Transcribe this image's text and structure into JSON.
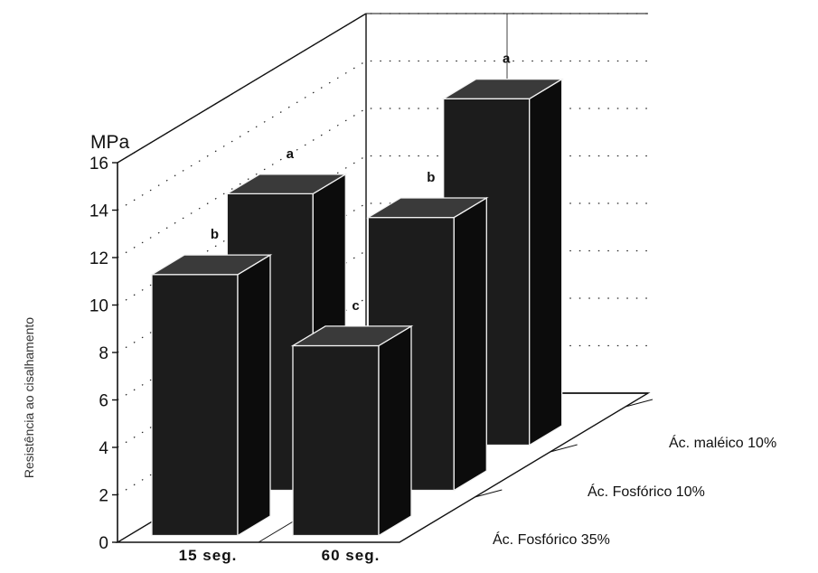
{
  "chart_data": {
    "type": "bar",
    "subtype": "3d-grouped",
    "unit_label": "MPa",
    "ylabel": "Resistência ao cisalhamento",
    "ylim": [
      0,
      16
    ],
    "yticks": [
      0,
      2,
      4,
      6,
      8,
      10,
      12,
      14,
      16
    ],
    "categories": [
      "15 seg.",
      "60 seg."
    ],
    "grid": true,
    "series": [
      {
        "name": "Ác. Fosfórico 35%",
        "values": [
          11.0,
          8.0
        ],
        "significance": [
          "b",
          "c"
        ]
      },
      {
        "name": "Ác. Fosfórico 10%",
        "values": [
          12.5,
          11.5
        ],
        "significance": [
          "a",
          "b"
        ]
      },
      {
        "name": "Ác. maléico 10%",
        "values": [
          null,
          14.6
        ],
        "significance": [
          null,
          "a"
        ]
      }
    ]
  },
  "colors": {
    "bar_front": "#1c1c1c",
    "bar_side": "#0c0c0c",
    "bar_top": "#3a3a3a",
    "bar_edge": "#f2f2f2",
    "axis": "#111111",
    "grid": "#222222"
  }
}
